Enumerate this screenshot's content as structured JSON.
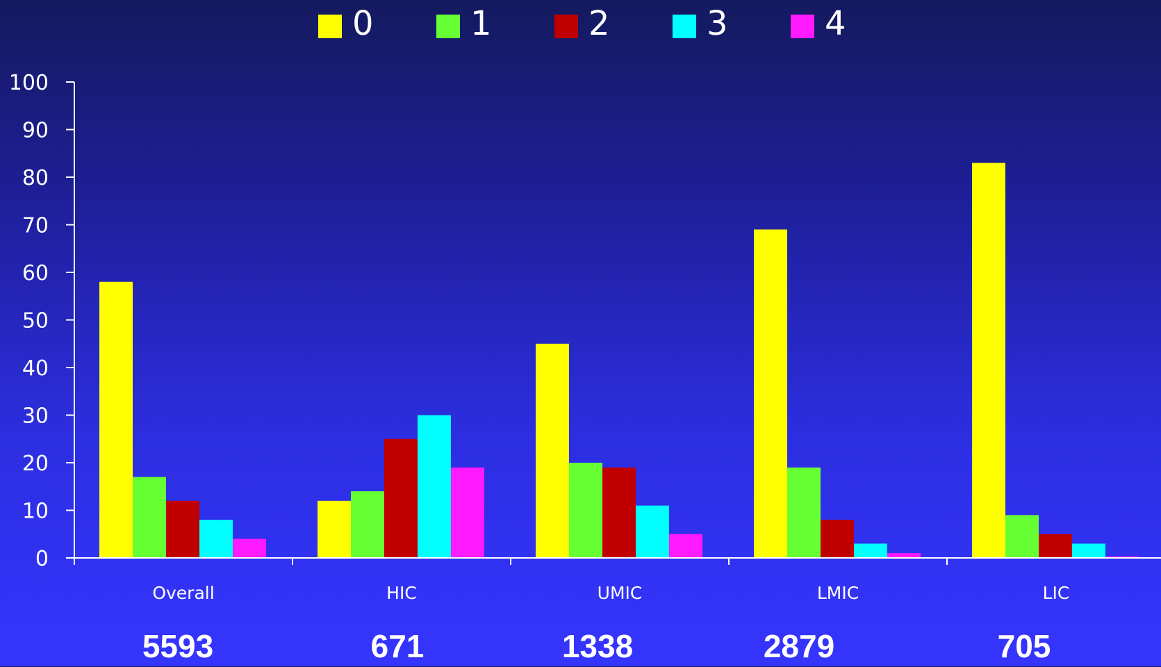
{
  "chart_data": {
    "type": "bar",
    "categories": [
      "Overall",
      "HIC",
      "UMIC",
      "LMIC",
      "LIC"
    ],
    "series": [
      {
        "name": "0",
        "color": "#ffff00",
        "values": [
          58,
          12,
          45,
          69,
          83
        ]
      },
      {
        "name": "1",
        "color": "#66ff33",
        "values": [
          17,
          14,
          20,
          19,
          9
        ]
      },
      {
        "name": "2",
        "color": "#c00000",
        "values": [
          12,
          25,
          19,
          8,
          5
        ]
      },
      {
        "name": "3",
        "color": "#00ffff",
        "values": [
          8,
          30,
          11,
          3,
          3
        ]
      },
      {
        "name": "4",
        "color": "#ff1aff",
        "values": [
          4,
          19,
          5,
          1,
          0.3
        ]
      }
    ],
    "yticks": [
      "0",
      "10",
      "20",
      "30",
      "40",
      "50",
      "60",
      "70",
      "80",
      "90",
      "100"
    ],
    "ylim": [
      0,
      100
    ],
    "grid": false,
    "legend_position": "top-center",
    "category_counts": [
      "5593",
      "671",
      "1338",
      "2879",
      "705"
    ]
  }
}
